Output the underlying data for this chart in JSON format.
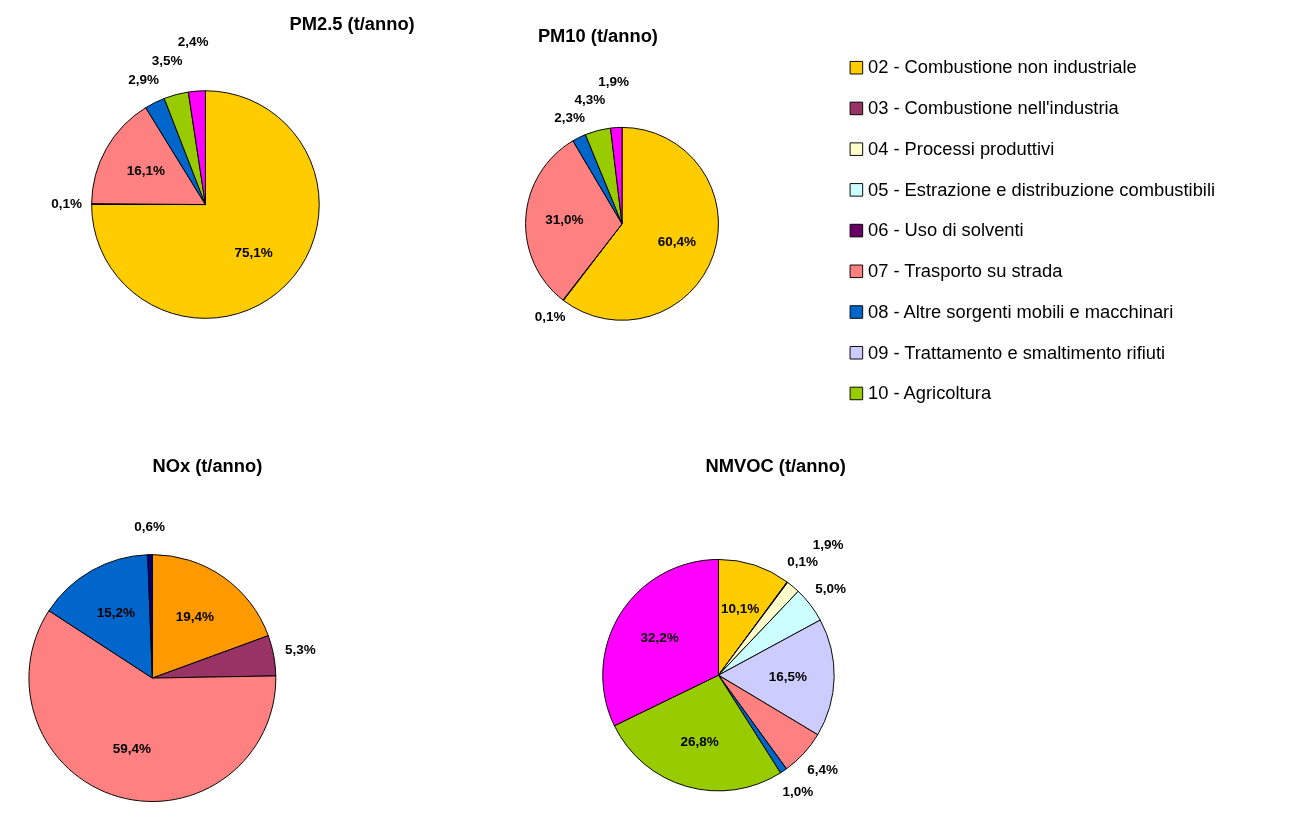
{
  "chart_data": [
    {
      "type": "pie",
      "title": "PM2.5 (t/anno)",
      "categories": [
        null,
        null,
        null,
        null,
        null,
        null
      ],
      "values": [
        75.1,
        0.1,
        16.1,
        2.9,
        3.5,
        2.4
      ],
      "value_labels": [
        "75,1%",
        "0,1%",
        "16,1%",
        "2,9%",
        "3,5%",
        "2,4%"
      ],
      "colors": [
        "#ffcc00",
        "#330033",
        "#ff8080",
        "#0066cc",
        "#99cc00",
        "#ff00ff"
      ]
    },
    {
      "type": "pie",
      "title": "PM10 (t/anno)",
      "categories": [
        null,
        null,
        null,
        null,
        null,
        null
      ],
      "values": [
        60.4,
        0.1,
        31.0,
        2.3,
        4.3,
        1.9
      ],
      "value_labels": [
        "60,4%",
        "0,1%",
        "31,0%",
        "2,3%",
        "4,3%",
        "1,9%"
      ],
      "colors": [
        "#ffcc00",
        "#330033",
        "#ff8080",
        "#0066cc",
        "#99cc00",
        "#ff00ff"
      ]
    },
    {
      "type": "pie",
      "title": "NOx (t/anno)",
      "categories": [
        null,
        null,
        null,
        null,
        null
      ],
      "values": [
        19.4,
        5.3,
        59.4,
        15.2,
        0.6
      ],
      "value_labels": [
        "19,4%",
        "5,3%",
        "59,4%",
        "15,2%",
        "0,6%"
      ],
      "colors": [
        "#ff9900",
        "#993366",
        "#ff8080",
        "#0066cc",
        "#000080"
      ]
    },
    {
      "type": "pie",
      "title": "NMVOC (t/anno)",
      "categories": [
        null,
        null,
        null,
        null,
        null,
        null,
        null,
        null,
        null
      ],
      "values": [
        10.1,
        0.1,
        1.9,
        5.0,
        16.5,
        6.4,
        1.0,
        26.8,
        32.2
      ],
      "value_labels": [
        "10,1%",
        "0,1%",
        "1,9%",
        "5,0%",
        "16,5%",
        "6,4%",
        "1,0%",
        "26,8%",
        "32,2%"
      ],
      "colors": [
        "#ffcc00",
        "#000000",
        "#ffffcc",
        "#ccffff",
        "#ccccff",
        "#ff8080",
        "#0066cc",
        "#99cc00",
        "#ff00ff"
      ]
    },
    {
      "type": "other",
      "categories": [
        "02 - Combustione non industriale",
        "03 - Combustione nell'industria",
        "04 - Processi produttivi",
        "05 - Estrazione e distribuzione combustibili",
        "06 - Uso di solventi",
        "07 - Trasporto su strada",
        "08 - Altre sorgenti mobili e macchinari",
        "09 - Trattamento e smaltimento rifiuti",
        "10 - Agricoltura"
      ],
      "colors": [
        "#ffcc00",
        "#993366",
        "#ffffcc",
        "#ccffff",
        "#660066",
        "#ff8080",
        "#0066cc",
        "#ccccff",
        "#99cc00"
      ]
    }
  ]
}
